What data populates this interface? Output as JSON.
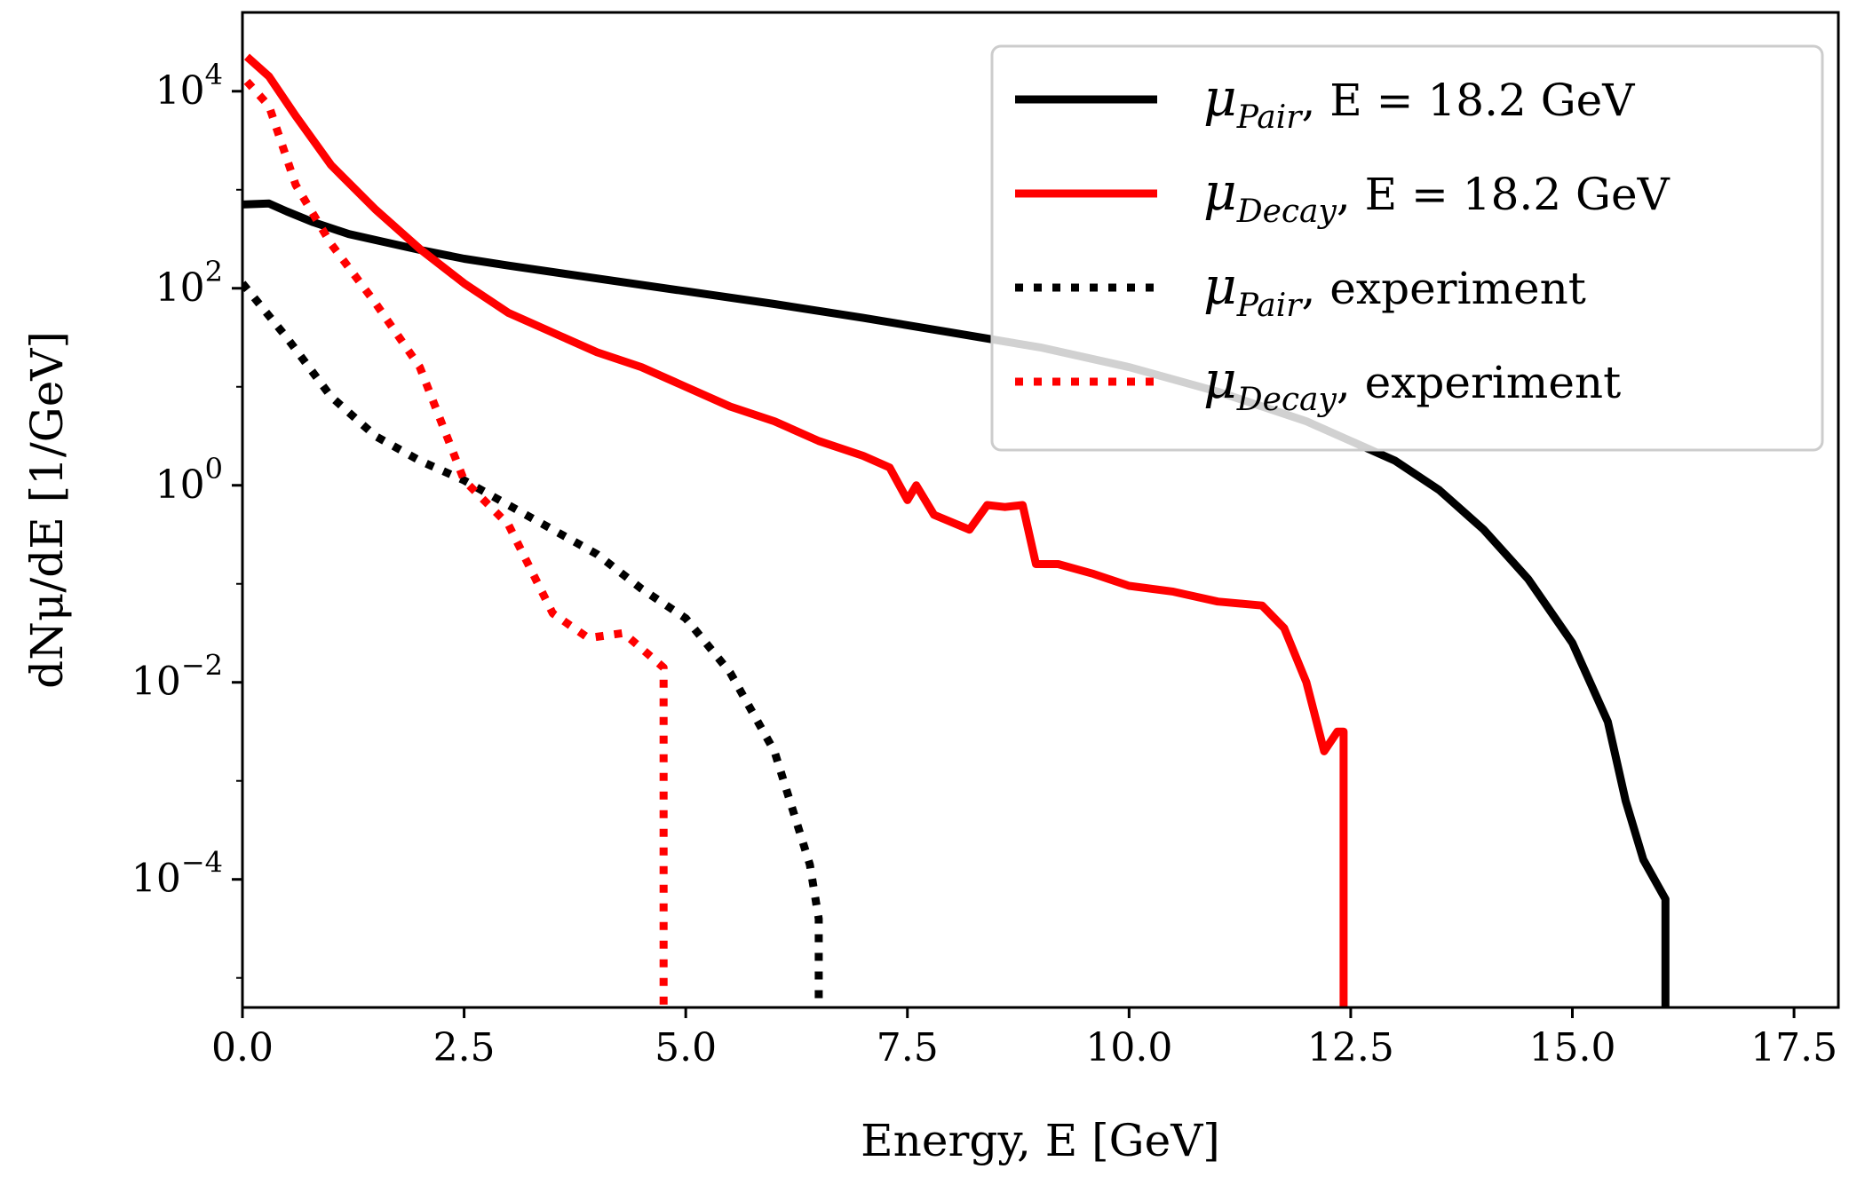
{
  "chart_data": {
    "type": "line",
    "title": "",
    "xlabel": "Energy, E [GeV]",
    "ylabel": "dNμ/dE [1/GeV]",
    "xlim": [
      0,
      18
    ],
    "ylim_log10": [
      -5.3,
      4.8
    ],
    "yscale": "log",
    "grid": false,
    "legend_position": "top-right",
    "x_ticks": [
      {
        "value": 0.0,
        "label": "0.0"
      },
      {
        "value": 2.5,
        "label": "2.5"
      },
      {
        "value": 5.0,
        "label": "5.0"
      },
      {
        "value": 7.5,
        "label": "7.5"
      },
      {
        "value": 10.0,
        "label": "10.0"
      },
      {
        "value": 12.5,
        "label": "12.5"
      },
      {
        "value": 15.0,
        "label": "15.0"
      },
      {
        "value": 17.5,
        "label": "17.5"
      }
    ],
    "y_ticks": [
      {
        "exp": 4,
        "base": "10",
        "sup": "4"
      },
      {
        "exp": 2,
        "base": "10",
        "sup": "2"
      },
      {
        "exp": 0,
        "base": "10",
        "sup": "0"
      },
      {
        "exp": -2,
        "base": "10",
        "sup": "−2"
      },
      {
        "exp": -4,
        "base": "10",
        "sup": "−4"
      }
    ],
    "series": [
      {
        "name": "mu_Pair, E = 18.2 GeV",
        "legend": {
          "main": "μ",
          "sub": "Pair",
          "rest": ", E = 18.2 GeV"
        },
        "color": "#000000",
        "style": "solid",
        "points": [
          [
            0,
            2.85
          ],
          [
            0.3,
            2.86
          ],
          [
            0.5,
            2.78
          ],
          [
            0.8,
            2.67
          ],
          [
            1.2,
            2.55
          ],
          [
            1.6,
            2.47
          ],
          [
            2,
            2.39
          ],
          [
            2.5,
            2.3
          ],
          [
            3,
            2.23
          ],
          [
            4,
            2.1
          ],
          [
            5,
            1.97
          ],
          [
            6,
            1.84
          ],
          [
            7,
            1.7
          ],
          [
            8,
            1.55
          ],
          [
            9,
            1.4
          ],
          [
            10,
            1.2
          ],
          [
            11,
            0.95
          ],
          [
            12,
            0.65
          ],
          [
            12.5,
            0.45
          ],
          [
            13,
            0.25
          ],
          [
            13.5,
            -0.05
          ],
          [
            14,
            -0.45
          ],
          [
            14.5,
            -0.95
          ],
          [
            15,
            -1.6
          ],
          [
            15.4,
            -2.4
          ],
          [
            15.6,
            -3.2
          ],
          [
            15.8,
            -3.8
          ],
          [
            16.05,
            -4.2
          ],
          [
            16.05,
            -5.3
          ]
        ]
      },
      {
        "name": "mu_Decay, E = 18.2 GeV",
        "legend": {
          "main": "μ",
          "sub": "Decay",
          "rest": ", E = 18.2 GeV"
        },
        "color": "#ff0000",
        "style": "solid",
        "points": [
          [
            0.05,
            4.35
          ],
          [
            0.3,
            4.15
          ],
          [
            0.6,
            3.75
          ],
          [
            1,
            3.25
          ],
          [
            1.5,
            2.8
          ],
          [
            2,
            2.4
          ],
          [
            2.5,
            2.05
          ],
          [
            3,
            1.75
          ],
          [
            3.5,
            1.55
          ],
          [
            4,
            1.35
          ],
          [
            4.5,
            1.2
          ],
          [
            5,
            1.0
          ],
          [
            5.5,
            0.8
          ],
          [
            6,
            0.65
          ],
          [
            6.5,
            0.45
          ],
          [
            7,
            0.3
          ],
          [
            7.3,
            0.18
          ],
          [
            7.5,
            -0.15
          ],
          [
            7.6,
            0.0
          ],
          [
            7.8,
            -0.3
          ],
          [
            8.2,
            -0.45
          ],
          [
            8.4,
            -0.2
          ],
          [
            8.6,
            -0.22
          ],
          [
            8.8,
            -0.2
          ],
          [
            8.95,
            -0.8
          ],
          [
            9.2,
            -0.8
          ],
          [
            9.6,
            -0.9
          ],
          [
            10,
            -1.02
          ],
          [
            10.5,
            -1.08
          ],
          [
            11,
            -1.18
          ],
          [
            11.5,
            -1.22
          ],
          [
            11.75,
            -1.45
          ],
          [
            12,
            -2.0
          ],
          [
            12.2,
            -2.7
          ],
          [
            12.35,
            -2.5
          ],
          [
            12.42,
            -2.5
          ],
          [
            12.42,
            -5.3
          ]
        ]
      },
      {
        "name": "mu_Pair, experiment",
        "legend": {
          "main": "μ",
          "sub": "Pair",
          "rest": ", experiment"
        },
        "color": "#000000",
        "style": "dotted",
        "points": [
          [
            0,
            2.05
          ],
          [
            0.5,
            1.5
          ],
          [
            1,
            0.9
          ],
          [
            1.5,
            0.5
          ],
          [
            2,
            0.25
          ],
          [
            2.5,
            0.05
          ],
          [
            3,
            -0.2
          ],
          [
            3.5,
            -0.45
          ],
          [
            4,
            -0.7
          ],
          [
            4.5,
            -1.05
          ],
          [
            5,
            -1.35
          ],
          [
            5.5,
            -1.9
          ],
          [
            6,
            -2.7
          ],
          [
            6.4,
            -3.85
          ],
          [
            6.5,
            -4.4
          ],
          [
            6.5,
            -5.3
          ]
        ]
      },
      {
        "name": "mu_Decay, experiment",
        "legend": {
          "main": "μ",
          "sub": "Decay",
          "rest": ", experiment"
        },
        "color": "#ff0000",
        "style": "dotted",
        "points": [
          [
            0.05,
            4.1
          ],
          [
            0.3,
            3.85
          ],
          [
            0.6,
            3.05
          ],
          [
            1,
            2.45
          ],
          [
            1.5,
            1.85
          ],
          [
            2,
            1.2
          ],
          [
            2.5,
            0.05
          ],
          [
            3,
            -0.4
          ],
          [
            3.5,
            -1.3
          ],
          [
            3.9,
            -1.55
          ],
          [
            4.3,
            -1.5
          ],
          [
            4.75,
            -1.85
          ],
          [
            4.75,
            -5.3
          ]
        ]
      }
    ]
  }
}
